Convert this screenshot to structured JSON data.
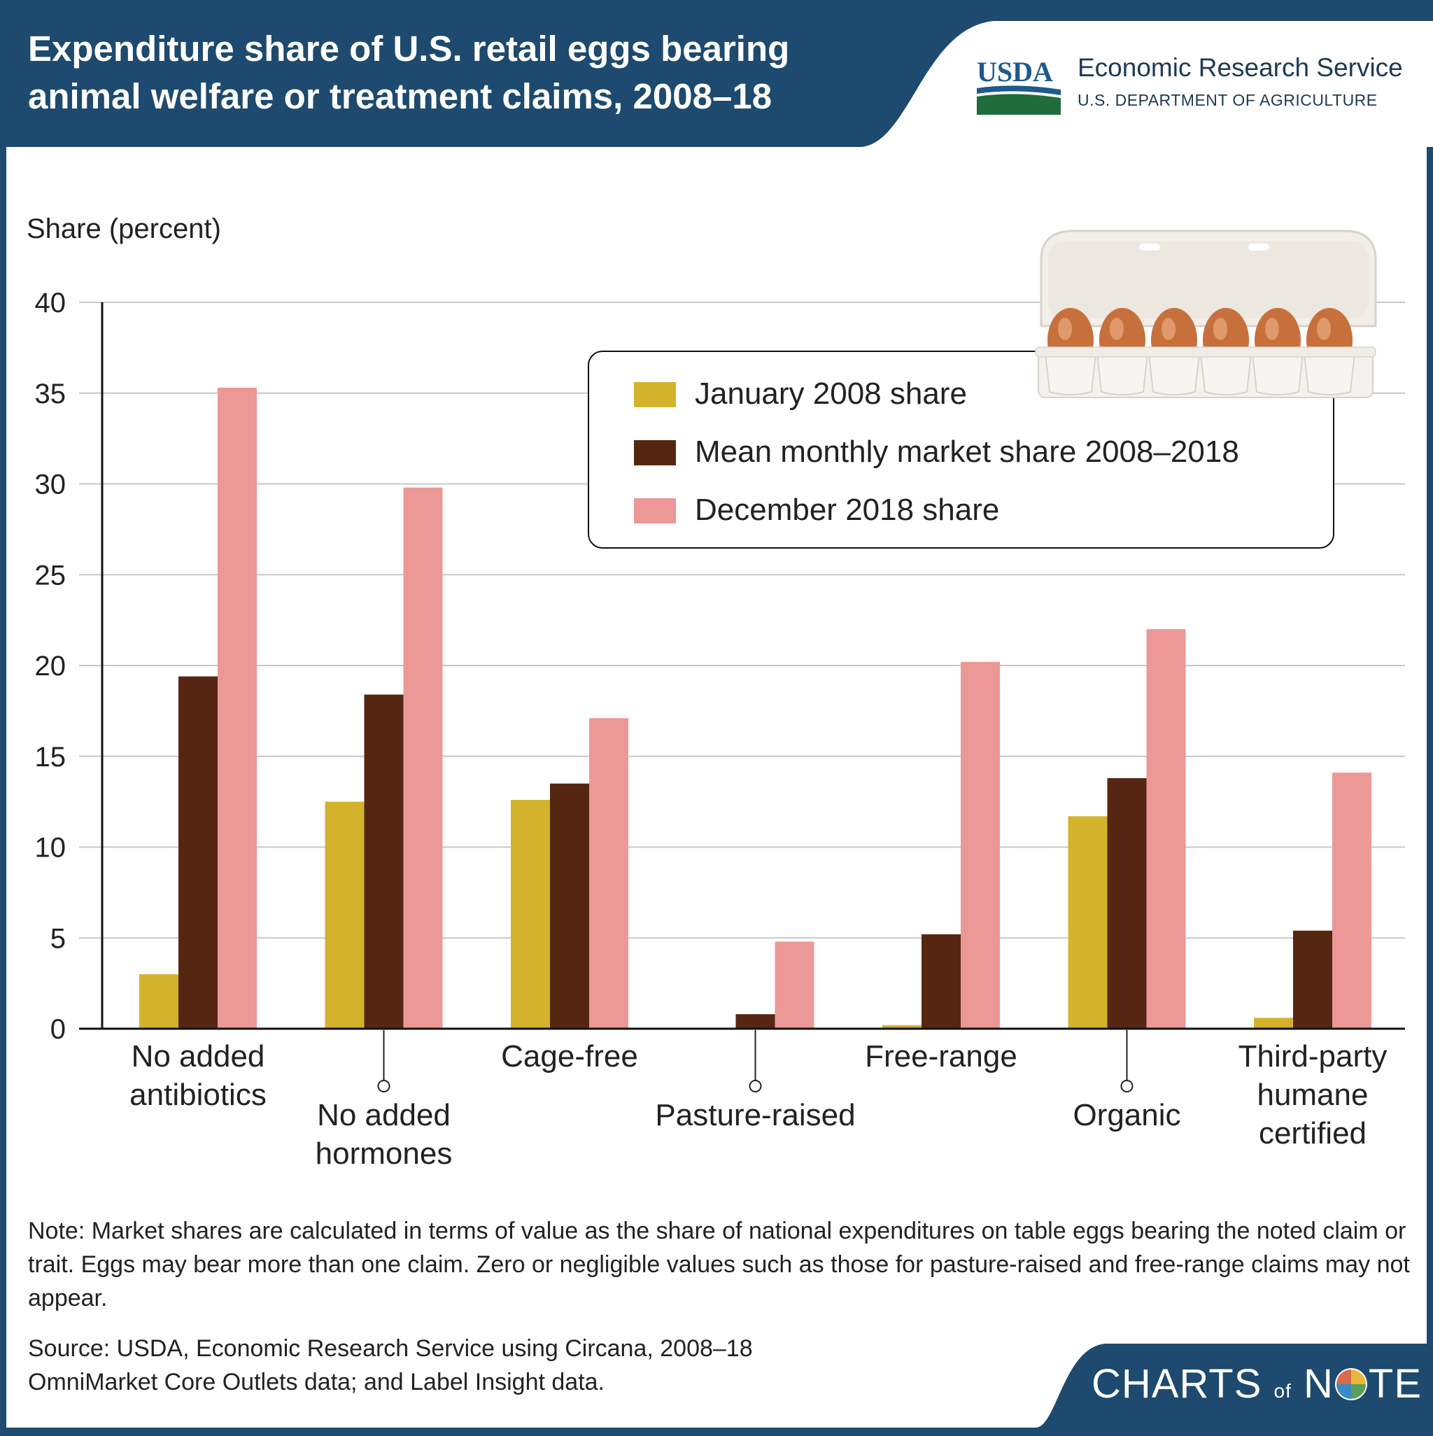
{
  "header": {
    "title_line1": "Expenditure share of U.S. retail eggs bearing",
    "title_line2": "animal welfare or treatment claims, 2008–18",
    "logo_text": "USDA",
    "org_name": "Economic Research Service",
    "dept_name": "U.S. DEPARTMENT OF AGRICULTURE"
  },
  "colors": {
    "navy": "#1d4a6e",
    "jan2008": "#d4b32c",
    "mean": "#552712",
    "dec2018": "#eb9896",
    "usda_green": "#1f6d3a",
    "usda_blue": "#1d5a8e"
  },
  "chart_data": {
    "type": "bar",
    "ylabel": "Share (percent)",
    "ylim": [
      0,
      40
    ],
    "yticks": [
      0,
      5,
      10,
      15,
      20,
      25,
      30,
      35,
      40
    ],
    "grid": true,
    "legend_position": "top-right",
    "categories": [
      "No added antibiotics",
      "No added hormones",
      "Cage-free",
      "Pasture-raised",
      "Free-range",
      "Organic",
      "Third-party humane certified"
    ],
    "category_label_lines": [
      [
        "No added",
        "antibiotics"
      ],
      [
        "No added",
        "hormones"
      ],
      [
        "Cage-free"
      ],
      [
        "Pasture-raised"
      ],
      [
        "Free-range"
      ],
      [
        "Organic"
      ],
      [
        "Third-party",
        "humane",
        "certified"
      ]
    ],
    "series": [
      {
        "name": "January 2008 share",
        "values": [
          3.0,
          12.5,
          12.6,
          0.0,
          0.2,
          11.7,
          0.6
        ]
      },
      {
        "name": "Mean monthly market share 2008–2018",
        "values": [
          19.4,
          18.4,
          13.5,
          0.8,
          5.2,
          13.8,
          5.4
        ]
      },
      {
        "name": "December 2018 share",
        "values": [
          35.3,
          29.8,
          17.1,
          4.8,
          20.2,
          22.0,
          14.1
        ]
      }
    ]
  },
  "note_text": "Note: Market shares are calculated in terms of value as the share of national expenditures on table eggs bearing the noted claim or trait. Eggs may bear more than one claim. Zero or negligible values such as those for pasture-raised and free-range claims may not appear.",
  "source_line1": "Source: USDA, Economic Research Service using Circana, 2008–18",
  "source_line2": "OmniMarket Core Outlets data; and Label Insight data.",
  "brand": {
    "part1": "CHARTS",
    "part2": "of",
    "part3": "N",
    "part4": "TE"
  }
}
